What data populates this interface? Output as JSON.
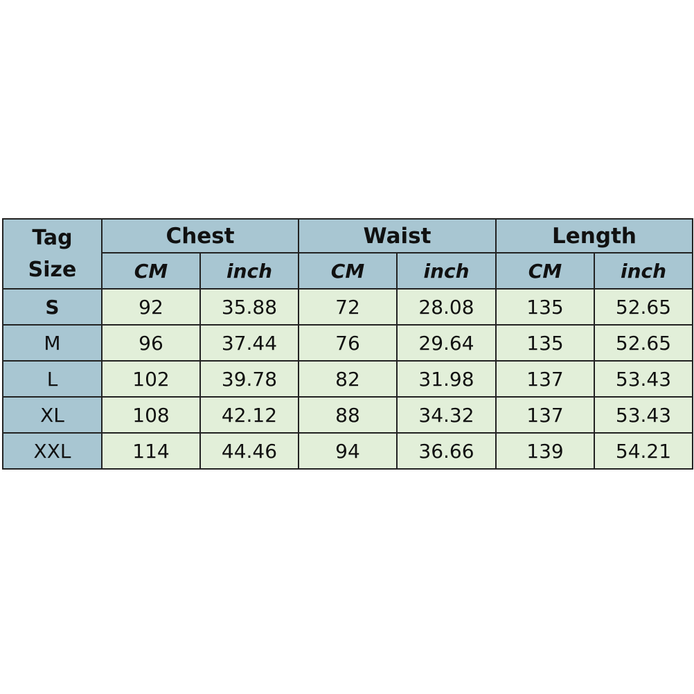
{
  "table": {
    "corner": "Tag Size",
    "groups": [
      "Chest",
      "Waist",
      "Length"
    ],
    "units": [
      "CM",
      "inch",
      "CM",
      "inch",
      "CM",
      "inch"
    ],
    "rows": [
      [
        "S",
        92,
        35.88,
        72,
        28.08,
        135,
        52.65
      ],
      [
        "M",
        96,
        37.44,
        76,
        29.64,
        135,
        52.65
      ],
      [
        "L",
        102,
        39.78,
        82,
        31.98,
        137,
        53.43
      ],
      [
        "XL",
        108,
        42.12,
        88,
        34.32,
        137,
        53.43
      ],
      [
        "XXL",
        114,
        44.46,
        94,
        36.66,
        139,
        54.21
      ]
    ]
  }
}
